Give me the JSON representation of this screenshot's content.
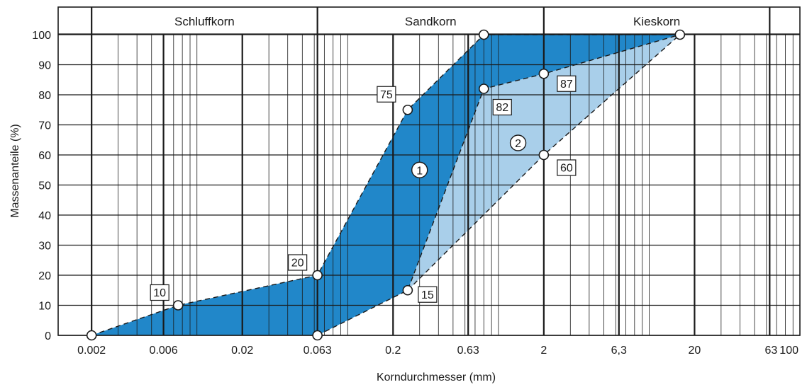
{
  "chart_data": {
    "type": "area",
    "xlabel": "Korndurchmesser (mm)",
    "ylabel": "Massenanteile (%)",
    "x_scale": "log",
    "xlim": [
      0.0012,
      100
    ],
    "ylim": [
      0,
      100
    ],
    "x_ticks": [
      {
        "value": 0.002,
        "label": "0.002"
      },
      {
        "value": 0.006,
        "label": "0.006"
      },
      {
        "value": 0.02,
        "label": "0.02"
      },
      {
        "value": 0.063,
        "label": "0.063"
      },
      {
        "value": 0.2,
        "label": "0.2"
      },
      {
        "value": 0.63,
        "label": "0.63"
      },
      {
        "value": 2,
        "label": "2"
      },
      {
        "value": 6.3,
        "label": "6,3"
      },
      {
        "value": 20,
        "label": "20"
      },
      {
        "value": 63,
        "label": "63"
      },
      {
        "value": 100,
        "label": "100"
      }
    ],
    "y_ticks": [
      0,
      10,
      20,
      30,
      40,
      50,
      60,
      70,
      80,
      90,
      100
    ],
    "zones": [
      {
        "label": "Schluffkorn",
        "from": 0.002,
        "to": 0.063
      },
      {
        "label": "Sandkorn",
        "from": 0.063,
        "to": 2
      },
      {
        "label": "Kieskorn",
        "from": 2,
        "to": 63
      }
    ],
    "series": [
      {
        "name": "1",
        "color": "#2187c9",
        "upper": [
          [
            0.002,
            0
          ],
          [
            0.0075,
            10
          ],
          [
            0.063,
            20
          ],
          [
            0.25,
            75
          ],
          [
            0.8,
            100
          ],
          [
            16,
            100
          ]
        ],
        "lower": [
          [
            0.063,
            0
          ],
          [
            0.25,
            15
          ],
          [
            0.8,
            82
          ],
          [
            2,
            87
          ],
          [
            16,
            100
          ]
        ]
      },
      {
        "name": "2",
        "color": "#a9cfea",
        "upper": [
          [
            0.25,
            15
          ],
          [
            0.8,
            82
          ],
          [
            2,
            87
          ],
          [
            16,
            100
          ]
        ],
        "lower": [
          [
            0.25,
            15
          ],
          [
            2,
            60
          ],
          [
            16,
            100
          ]
        ]
      }
    ],
    "annotations": [
      {
        "label": "10",
        "x": 0.0075,
        "y": 10
      },
      {
        "label": "20",
        "x": 0.063,
        "y": 20
      },
      {
        "label": "75",
        "x": 0.25,
        "y": 75
      },
      {
        "label": "15",
        "x": 0.25,
        "y": 15
      },
      {
        "label": "82",
        "x": 0.8,
        "y": 82
      },
      {
        "label": "87",
        "x": 2,
        "y": 87
      },
      {
        "label": "60",
        "x": 2,
        "y": 60
      }
    ],
    "points": [
      [
        0.002,
        0
      ],
      [
        0.0075,
        10
      ],
      [
        0.063,
        20
      ],
      [
        0.063,
        0
      ],
      [
        0.25,
        75
      ],
      [
        0.25,
        15
      ],
      [
        0.8,
        100
      ],
      [
        0.8,
        82
      ],
      [
        2,
        87
      ],
      [
        2,
        60
      ],
      [
        16,
        100
      ]
    ],
    "grid": true
  }
}
